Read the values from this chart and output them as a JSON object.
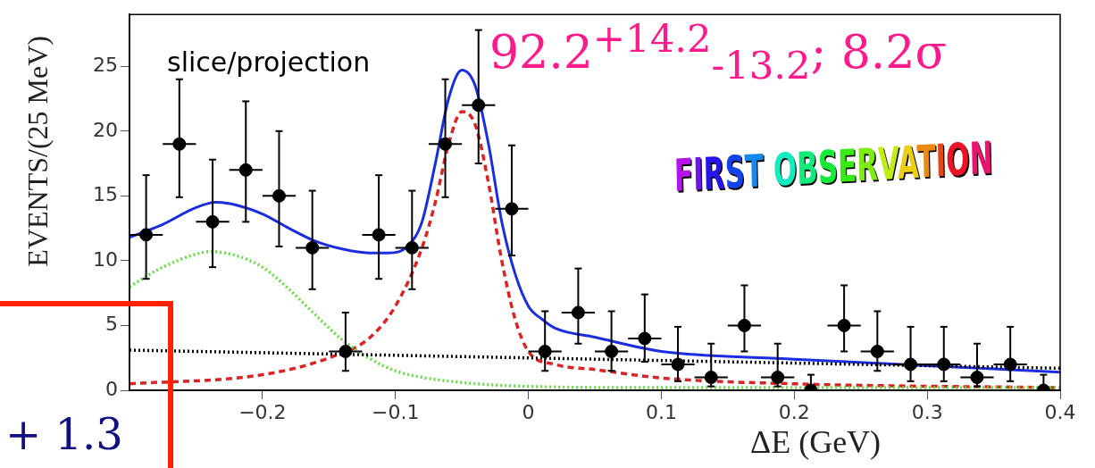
{
  "chart_data": {
    "type": "scatter",
    "xlabel": "ΔE (GeV)",
    "ylabel": "EVENTS/(25 MeV)",
    "annotations": [
      "slice/projection",
      "92.2$^{+14.2}$$_{-13.2}$; 8.2σ",
      "FIRST OBSERVATION",
      "+ 1.3"
    ],
    "xlim": [
      -0.3,
      0.4
    ],
    "xticks": [
      {
        "value": -0.2,
        "label": "−0.2"
      },
      {
        "value": -0.1,
        "label": "−0.1"
      },
      0,
      0.1,
      0.2,
      0.3,
      0.4
    ],
    "ylim": [
      0,
      29
    ],
    "yticks": [
      0,
      5,
      10,
      15,
      20,
      25
    ],
    "grid": false,
    "legend": false,
    "series": [
      {
        "type": "scatter",
        "color": "#000000",
        "marker": "circle",
        "x": [
          -0.2875,
          -0.2625,
          -0.2375,
          -0.2125,
          -0.1875,
          -0.1625,
          -0.1375,
          -0.1125,
          -0.0875,
          -0.0625,
          -0.0375,
          -0.0125,
          0.0125,
          0.0375,
          0.0625,
          0.0875,
          0.1125,
          0.1375,
          0.1625,
          0.1875,
          0.2125,
          0.2375,
          0.2625,
          0.2875,
          0.3125,
          0.3375,
          0.3625,
          0.3875
        ],
        "values": [
          12,
          19,
          13,
          17,
          15,
          11,
          3,
          12,
          11,
          19,
          22,
          14,
          3,
          6,
          3,
          4,
          2,
          1,
          5,
          1,
          0,
          5,
          3,
          2,
          2,
          1,
          2,
          0
        ],
        "errors": [
          [
            8.6,
            16.6
          ],
          [
            14.9,
            24
          ],
          [
            9.5,
            17.8
          ],
          [
            13,
            22.3
          ],
          [
            11.1,
            20
          ],
          [
            7.8,
            15.4
          ],
          [
            1.5,
            6
          ],
          [
            8.6,
            16.6
          ],
          [
            7.8,
            15.4
          ],
          [
            14.9,
            24
          ],
          [
            17.5,
            27.8
          ],
          [
            10.4,
            18.9
          ],
          [
            1.5,
            6.1
          ],
          [
            3.6,
            9.4
          ],
          [
            1.5,
            6.1
          ],
          [
            2.2,
            7.4
          ],
          [
            0.7,
            4.9
          ],
          [
            0.3,
            3.6
          ],
          [
            3,
            8.1
          ],
          [
            0.3,
            3.6
          ],
          [
            0,
            1.2
          ],
          [
            3,
            8.1
          ],
          [
            1.5,
            6.1
          ],
          [
            0.7,
            4.9
          ],
          [
            0.7,
            4.9
          ],
          [
            0.3,
            3.6
          ],
          [
            0.7,
            4.9
          ],
          [
            0,
            1.2
          ]
        ],
        "xerrors": [
          0.0125,
          0.0125,
          0.0125,
          0.0125,
          0.0125,
          0.0125,
          0.0125,
          0.0125,
          0.0125,
          0.0125,
          0.0125,
          0.0125,
          0.0125,
          0.0125,
          0.0125,
          0.0125,
          0.0125,
          0.0125,
          0.0125,
          0.0125,
          0.0125,
          0.0125,
          0.0125,
          0.0125,
          0.0125,
          0.0125,
          0.0125,
          0.0125
        ]
      },
      {
        "type": "line",
        "color": "#000000",
        "line_style": "dotted",
        "marker": "none",
        "x": [
          -0.3,
          0.4
        ],
        "values": [
          3.1,
          1.7
        ]
      },
      {
        "type": "line",
        "color": "#66dd44",
        "line_style": "dotted",
        "marker": "none",
        "x": [
          -0.3,
          -0.275,
          -0.25,
          -0.24,
          -0.22,
          -0.2,
          -0.18,
          -0.16,
          -0.14,
          -0.12,
          -0.1,
          -0.08,
          -0.05,
          0,
          0.1,
          0.4
        ],
        "values": [
          8,
          9.5,
          10.5,
          10.7,
          10.4,
          9.5,
          7.8,
          5.8,
          3.9,
          2.5,
          1.5,
          1,
          0.6,
          0.3,
          0.2,
          0.2
        ]
      },
      {
        "type": "line",
        "color": "#dd2222",
        "line_style": "dashed",
        "marker": "none",
        "x": [
          -0.3,
          -0.2,
          -0.15,
          -0.12,
          -0.1,
          -0.08,
          -0.07,
          -0.06,
          -0.05,
          -0.04,
          -0.03,
          -0.02,
          -0.01,
          0,
          0.02,
          0.05,
          0.1,
          0.2,
          0.4
        ],
        "values": [
          0.5,
          1.2,
          2.5,
          4,
          6.5,
          11,
          14.5,
          19,
          21.5,
          20.5,
          16,
          10,
          5.5,
          3,
          2,
          1.6,
          0.95,
          0.5,
          0.2
        ]
      },
      {
        "type": "line",
        "color": "#1a2ee0",
        "line_style": "solid",
        "marker": "none",
        "x": [
          -0.3,
          -0.275,
          -0.25,
          -0.235,
          -0.22,
          -0.2,
          -0.18,
          -0.16,
          -0.14,
          -0.12,
          -0.105,
          -0.09,
          -0.08,
          -0.07,
          -0.06,
          -0.05,
          -0.04,
          -0.03,
          -0.02,
          -0.01,
          0,
          0.01,
          0.02,
          0.05,
          0.1,
          0.2,
          0.3,
          0.4
        ],
        "values": [
          11.8,
          12.8,
          14.1,
          14.5,
          14.3,
          13.6,
          12.5,
          11.5,
          10.9,
          10.6,
          10.6,
          11.2,
          13,
          17.5,
          22.5,
          24.7,
          23.5,
          19,
          13,
          9,
          6.5,
          5.5,
          4.8,
          4.1,
          3,
          2.4,
          1.9,
          1.4
        ]
      }
    ]
  }
}
